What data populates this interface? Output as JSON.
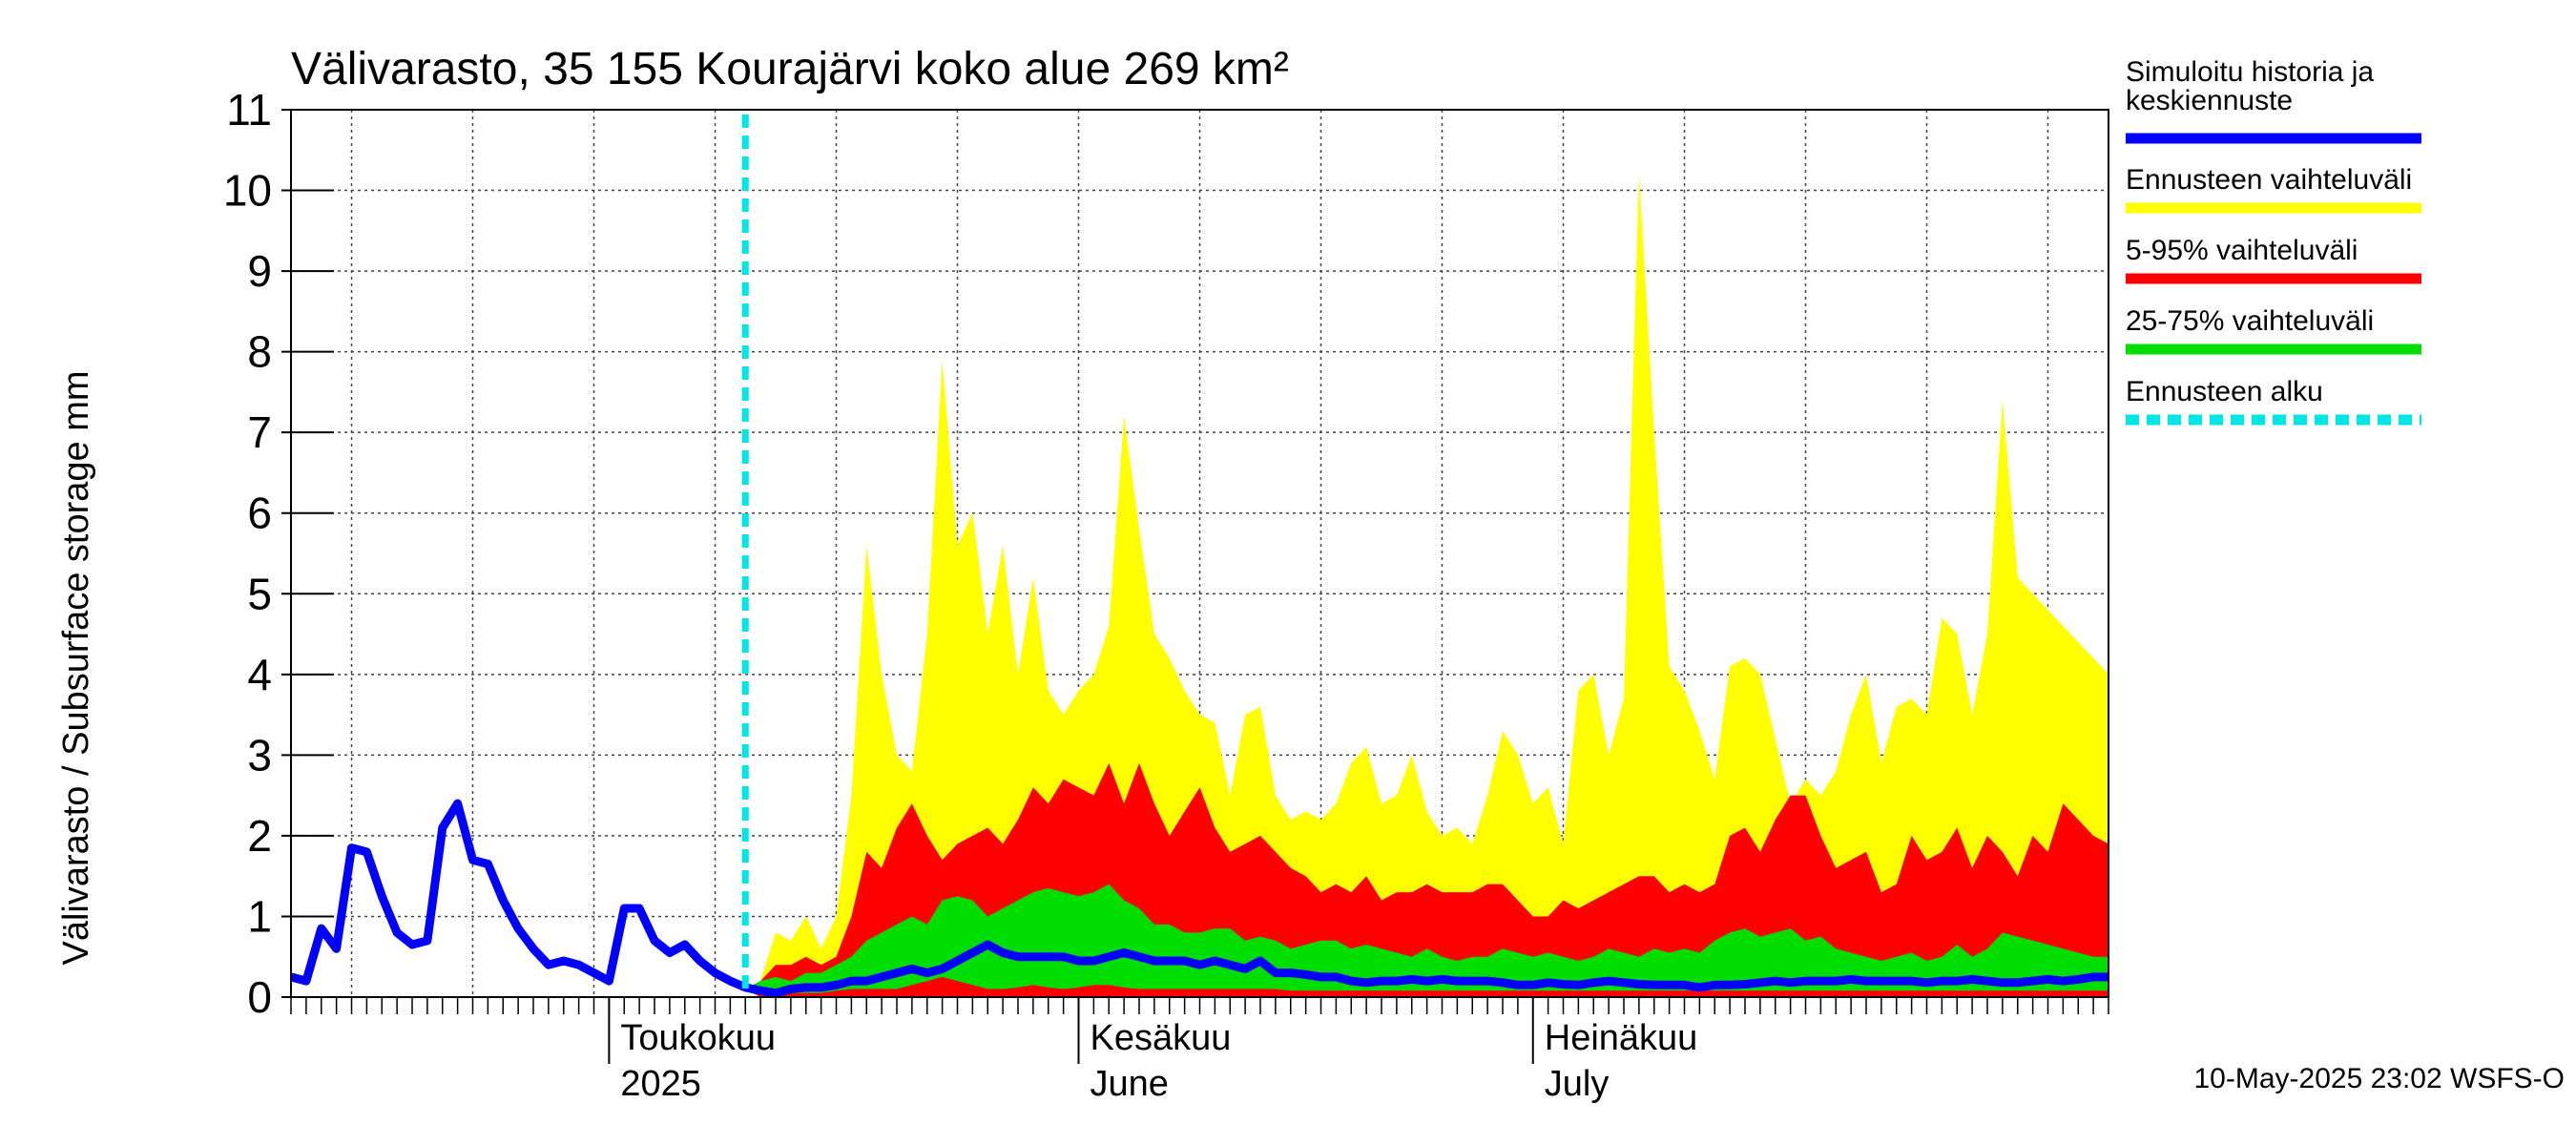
{
  "chart_data": {
    "type": "area",
    "title": "Välivarasto, 35 155 Kourajärvi koko alue 269 km²",
    "ylabel": "Välivarasto / Subsurface storage  mm",
    "ylim": [
      0,
      11
    ],
    "yticks": [
      "0",
      "1",
      "2",
      "3",
      "4",
      "5",
      "6",
      "7",
      "8",
      "9",
      "10",
      "11"
    ],
    "x_range_days": [
      0,
      120
    ],
    "forecast_start_day": 30,
    "month_labels": [
      {
        "day": 21,
        "line1": "Toukokuu",
        "line2": "2025"
      },
      {
        "day": 52,
        "line1": "Kesäkuu",
        "line2": "June"
      },
      {
        "day": 82,
        "line1": "Heinäkuu",
        "line2": "July"
      }
    ],
    "series": [
      {
        "name": "Ennusteen vaihteluväli",
        "kind": "band",
        "x": [
          30,
          31,
          32,
          33,
          34,
          35,
          36,
          37,
          38,
          39,
          40,
          41,
          42,
          43,
          44,
          45,
          46,
          47,
          48,
          49,
          50,
          51,
          52,
          53,
          54,
          55,
          56,
          57,
          58,
          59,
          60,
          61,
          62,
          63,
          64,
          65,
          66,
          67,
          68,
          69,
          70,
          71,
          72,
          73,
          74,
          75,
          76,
          77,
          78,
          79,
          80,
          81,
          82,
          83,
          84,
          85,
          86,
          87,
          88,
          89,
          90,
          91,
          92,
          93,
          94,
          95,
          96,
          97,
          98,
          99,
          100,
          101,
          102,
          103,
          104,
          105,
          106,
          107,
          108,
          109,
          110,
          111,
          112,
          113,
          114,
          115,
          116,
          117,
          118,
          119,
          120
        ],
        "lower": [
          0.1,
          0.0,
          0.0,
          0.0,
          0.0,
          0.0,
          0.0,
          0.0,
          0.0,
          0.0,
          0.0,
          0.0,
          0.0,
          0.0,
          0.0,
          0.0,
          0.0,
          0.0,
          0.0,
          0.0,
          0.0,
          0.0,
          0.0,
          0.0,
          0.0,
          0.0,
          0.0,
          0.0,
          0.0,
          0.0,
          0.0,
          0.0,
          0.0,
          0.0,
          0.0,
          0.0,
          0.0,
          0.0,
          0.0,
          0.0,
          0.0,
          0.0,
          0.0,
          0.0,
          0.0,
          0.0,
          0.0,
          0.0,
          0.0,
          0.0,
          0.0,
          0.0,
          0.0,
          0.0,
          0.0,
          0.0,
          0.0,
          0.0,
          0.0,
          0.0,
          0.0,
          0.0,
          0.0,
          0.0,
          0.0,
          0.0,
          0.0,
          0.0,
          0.0,
          0.0,
          0.0,
          0.0,
          0.0,
          0.0,
          0.0,
          0.0,
          0.0,
          0.0,
          0.0,
          0.0,
          0.0,
          0.0,
          0.0,
          0.0,
          0.0,
          0.0,
          0.0,
          0.0,
          0.0,
          0.0,
          0.0
        ],
        "upper": [
          0.1,
          0.2,
          0.8,
          0.7,
          1.0,
          0.6,
          1.0,
          2.5,
          5.6,
          4.0,
          3.0,
          2.8,
          4.5,
          7.9,
          5.6,
          6.0,
          4.5,
          5.6,
          4.0,
          5.2,
          3.8,
          3.5,
          3.8,
          4.0,
          4.6,
          7.2,
          5.8,
          4.5,
          4.2,
          3.8,
          3.5,
          3.4,
          2.5,
          3.5,
          3.6,
          2.5,
          2.2,
          2.3,
          2.2,
          2.4,
          2.9,
          3.1,
          2.4,
          2.5,
          3.0,
          2.3,
          2.0,
          2.1,
          1.9,
          2.5,
          3.3,
          3.0,
          2.4,
          2.6,
          1.9,
          3.8,
          4.0,
          3.0,
          3.7,
          10.2,
          7.0,
          4.1,
          3.8,
          3.3,
          2.7,
          4.1,
          4.2,
          4.0,
          3.2,
          2.4,
          2.7,
          2.5,
          2.8,
          3.5,
          4.0,
          2.9,
          3.6,
          3.7,
          3.5,
          4.7,
          4.5,
          3.5,
          4.5,
          7.4,
          5.2,
          5.0,
          4.8,
          4.6,
          4.4,
          4.2,
          4.0
        ]
      },
      {
        "name": "5-95% vaihteluväli",
        "kind": "band",
        "x": [
          30,
          31,
          32,
          33,
          34,
          35,
          36,
          37,
          38,
          39,
          40,
          41,
          42,
          43,
          44,
          45,
          46,
          47,
          48,
          49,
          50,
          51,
          52,
          53,
          54,
          55,
          56,
          57,
          58,
          59,
          60,
          61,
          62,
          63,
          64,
          65,
          66,
          67,
          68,
          69,
          70,
          71,
          72,
          73,
          74,
          75,
          76,
          77,
          78,
          79,
          80,
          81,
          82,
          83,
          84,
          85,
          86,
          87,
          88,
          89,
          90,
          91,
          92,
          93,
          94,
          95,
          96,
          97,
          98,
          99,
          100,
          101,
          102,
          103,
          104,
          105,
          106,
          107,
          108,
          109,
          110,
          111,
          112,
          113,
          114,
          115,
          116,
          117,
          118,
          119,
          120
        ],
        "lower": [
          0.1,
          0.0,
          0.0,
          0.0,
          0.0,
          0.0,
          0.0,
          0.0,
          0.0,
          0.0,
          0.0,
          0.0,
          0.0,
          0.0,
          0.0,
          0.0,
          0.0,
          0.0,
          0.0,
          0.0,
          0.0,
          0.0,
          0.0,
          0.0,
          0.0,
          0.0,
          0.0,
          0.0,
          0.0,
          0.0,
          0.0,
          0.0,
          0.0,
          0.0,
          0.0,
          0.0,
          0.0,
          0.0,
          0.0,
          0.0,
          0.0,
          0.0,
          0.0,
          0.0,
          0.0,
          0.0,
          0.0,
          0.0,
          0.0,
          0.0,
          0.0,
          0.0,
          0.0,
          0.0,
          0.0,
          0.0,
          0.0,
          0.0,
          0.0,
          0.0,
          0.0,
          0.0,
          0.0,
          0.0,
          0.0,
          0.0,
          0.0,
          0.0,
          0.0,
          0.0,
          0.0,
          0.0,
          0.0,
          0.0,
          0.0,
          0.0,
          0.0,
          0.0,
          0.0,
          0.0,
          0.0,
          0.0,
          0.0,
          0.0,
          0.0,
          0.0,
          0.0,
          0.0,
          0.0,
          0.0,
          0.0
        ],
        "upper": [
          0.1,
          0.2,
          0.4,
          0.4,
          0.5,
          0.4,
          0.5,
          1.0,
          1.8,
          1.6,
          2.1,
          2.4,
          2.0,
          1.7,
          1.9,
          2.0,
          2.1,
          1.9,
          2.2,
          2.6,
          2.4,
          2.7,
          2.6,
          2.5,
          2.9,
          2.4,
          2.9,
          2.4,
          2.0,
          2.3,
          2.6,
          2.1,
          1.8,
          1.9,
          2.0,
          1.8,
          1.6,
          1.5,
          1.3,
          1.4,
          1.3,
          1.5,
          1.2,
          1.3,
          1.3,
          1.4,
          1.3,
          1.3,
          1.3,
          1.4,
          1.4,
          1.2,
          1.0,
          1.0,
          1.2,
          1.1,
          1.2,
          1.3,
          1.4,
          1.5,
          1.5,
          1.3,
          1.4,
          1.3,
          1.4,
          2.0,
          2.1,
          1.8,
          2.2,
          2.5,
          2.5,
          2.0,
          1.6,
          1.7,
          1.8,
          1.3,
          1.4,
          2.0,
          1.7,
          1.8,
          2.1,
          1.6,
          2.0,
          1.8,
          1.5,
          2.0,
          1.8,
          2.4,
          2.2,
          2.0,
          1.9
        ]
      },
      {
        "name": "25-75% vaihteluväli",
        "kind": "band",
        "x": [
          30,
          31,
          32,
          33,
          34,
          35,
          36,
          37,
          38,
          39,
          40,
          41,
          42,
          43,
          44,
          45,
          46,
          47,
          48,
          49,
          50,
          51,
          52,
          53,
          54,
          55,
          56,
          57,
          58,
          59,
          60,
          61,
          62,
          63,
          64,
          65,
          66,
          67,
          68,
          69,
          70,
          71,
          72,
          73,
          74,
          75,
          76,
          77,
          78,
          79,
          80,
          81,
          82,
          83,
          84,
          85,
          86,
          87,
          88,
          89,
          90,
          91,
          92,
          93,
          94,
          95,
          96,
          97,
          98,
          99,
          100,
          101,
          102,
          103,
          104,
          105,
          106,
          107,
          108,
          109,
          110,
          111,
          112,
          113,
          114,
          115,
          116,
          117,
          118,
          119,
          120
        ],
        "lower": [
          0.1,
          0.05,
          0.05,
          0.05,
          0.05,
          0.05,
          0.08,
          0.1,
          0.1,
          0.1,
          0.1,
          0.15,
          0.2,
          0.25,
          0.2,
          0.15,
          0.1,
          0.1,
          0.12,
          0.15,
          0.12,
          0.1,
          0.12,
          0.15,
          0.15,
          0.12,
          0.1,
          0.1,
          0.1,
          0.1,
          0.1,
          0.1,
          0.1,
          0.1,
          0.1,
          0.1,
          0.08,
          0.08,
          0.08,
          0.08,
          0.08,
          0.08,
          0.08,
          0.08,
          0.08,
          0.08,
          0.08,
          0.08,
          0.08,
          0.08,
          0.08,
          0.08,
          0.08,
          0.08,
          0.08,
          0.08,
          0.08,
          0.08,
          0.08,
          0.08,
          0.08,
          0.08,
          0.08,
          0.08,
          0.08,
          0.08,
          0.08,
          0.08,
          0.08,
          0.08,
          0.08,
          0.08,
          0.08,
          0.08,
          0.08,
          0.08,
          0.08,
          0.08,
          0.08,
          0.08,
          0.08,
          0.08,
          0.08,
          0.08,
          0.08,
          0.08,
          0.08,
          0.08,
          0.08,
          0.08,
          0.08
        ],
        "upper": [
          0.1,
          0.2,
          0.25,
          0.2,
          0.3,
          0.3,
          0.4,
          0.5,
          0.7,
          0.8,
          0.9,
          1.0,
          0.9,
          1.2,
          1.25,
          1.2,
          1.0,
          1.1,
          1.2,
          1.3,
          1.35,
          1.3,
          1.25,
          1.3,
          1.4,
          1.2,
          1.1,
          0.9,
          0.9,
          0.8,
          0.8,
          0.85,
          0.85,
          0.7,
          0.75,
          0.7,
          0.6,
          0.65,
          0.7,
          0.7,
          0.6,
          0.65,
          0.6,
          0.55,
          0.5,
          0.6,
          0.5,
          0.45,
          0.5,
          0.5,
          0.6,
          0.55,
          0.5,
          0.55,
          0.5,
          0.45,
          0.5,
          0.6,
          0.55,
          0.5,
          0.6,
          0.55,
          0.6,
          0.55,
          0.7,
          0.8,
          0.85,
          0.75,
          0.8,
          0.85,
          0.7,
          0.75,
          0.6,
          0.55,
          0.5,
          0.45,
          0.5,
          0.55,
          0.45,
          0.5,
          0.65,
          0.5,
          0.6,
          0.8,
          0.75,
          0.7,
          0.65,
          0.6,
          0.55,
          0.5,
          0.5
        ]
      },
      {
        "name": "Simuloitu historia ja keskiennuste",
        "kind": "line",
        "x": [
          0,
          1,
          2,
          3,
          4,
          5,
          6,
          7,
          8,
          9,
          10,
          11,
          12,
          13,
          14,
          15,
          16,
          17,
          18,
          19,
          20,
          21,
          22,
          23,
          24,
          25,
          26,
          27,
          28,
          29,
          30,
          31,
          32,
          33,
          34,
          35,
          36,
          37,
          38,
          39,
          40,
          41,
          42,
          43,
          44,
          45,
          46,
          47,
          48,
          49,
          50,
          51,
          52,
          53,
          54,
          55,
          56,
          57,
          58,
          59,
          60,
          61,
          62,
          63,
          64,
          65,
          66,
          67,
          68,
          69,
          70,
          71,
          72,
          73,
          74,
          75,
          76,
          77,
          78,
          79,
          80,
          81,
          82,
          83,
          84,
          85,
          86,
          87,
          88,
          89,
          90,
          91,
          92,
          93,
          94,
          95,
          96,
          97,
          98,
          99,
          100,
          101,
          102,
          103,
          104,
          105,
          106,
          107,
          108,
          109,
          110,
          111,
          112,
          113,
          114,
          115,
          116,
          117,
          118,
          119,
          120
        ],
        "y": [
          0.25,
          0.2,
          0.85,
          0.6,
          1.85,
          1.8,
          1.25,
          0.8,
          0.65,
          0.7,
          2.1,
          2.4,
          1.7,
          1.65,
          1.2,
          0.85,
          0.6,
          0.4,
          0.45,
          0.4,
          0.3,
          0.2,
          1.1,
          1.1,
          0.7,
          0.55,
          0.65,
          0.45,
          0.3,
          0.2,
          0.12,
          0.08,
          0.05,
          0.1,
          0.12,
          0.12,
          0.15,
          0.2,
          0.2,
          0.25,
          0.3,
          0.35,
          0.3,
          0.35,
          0.45,
          0.55,
          0.65,
          0.55,
          0.5,
          0.5,
          0.5,
          0.5,
          0.45,
          0.45,
          0.5,
          0.55,
          0.5,
          0.45,
          0.45,
          0.45,
          0.4,
          0.45,
          0.4,
          0.35,
          0.45,
          0.3,
          0.3,
          0.28,
          0.25,
          0.25,
          0.2,
          0.18,
          0.2,
          0.2,
          0.22,
          0.2,
          0.22,
          0.2,
          0.2,
          0.2,
          0.18,
          0.15,
          0.15,
          0.18,
          0.16,
          0.15,
          0.18,
          0.2,
          0.18,
          0.16,
          0.15,
          0.15,
          0.15,
          0.12,
          0.15,
          0.15,
          0.16,
          0.18,
          0.2,
          0.18,
          0.2,
          0.2,
          0.2,
          0.22,
          0.2,
          0.2,
          0.2,
          0.2,
          0.18,
          0.2,
          0.2,
          0.22,
          0.2,
          0.18,
          0.18,
          0.2,
          0.22,
          0.2,
          0.22,
          0.25,
          0.25
        ]
      }
    ],
    "legend": [
      {
        "line1": "Simuloitu historia ja",
        "line2": "keskiennuste",
        "color": "#0000ff",
        "style": "solid"
      },
      {
        "line1": "Ennusteen vaihteluväli",
        "line2": "",
        "color": "#ffff00",
        "style": "solid"
      },
      {
        "line1": "5-95% vaihteluväli",
        "line2": "",
        "color": "#ff0000",
        "style": "solid"
      },
      {
        "line1": "25-75% vaihteluväli",
        "line2": "",
        "color": "#00dd00",
        "style": "solid"
      },
      {
        "line1": "Ennusteen alku",
        "line2": "",
        "color": "#00e5e5",
        "style": "dashed"
      }
    ],
    "legend_position": "right",
    "footer": "10-May-2025 23:02 WSFS-O",
    "grid": true
  }
}
